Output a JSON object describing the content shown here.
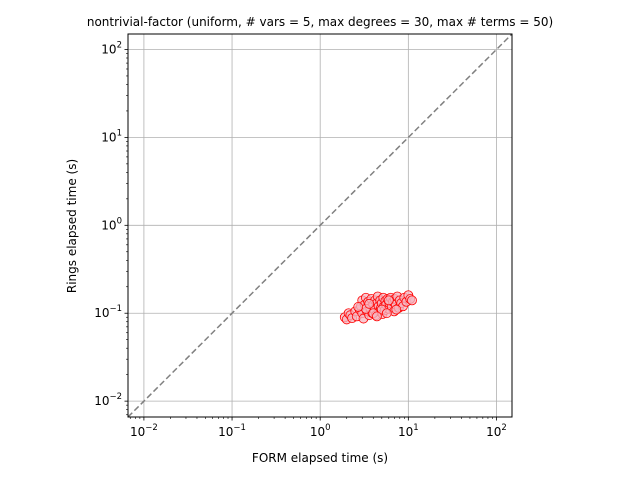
{
  "chart_data": {
    "type": "scatter",
    "title": "nontrivial-factor (uniform, # vars = 5, max degrees = 30, max # terms = 50)",
    "xlabel": "FORM elapsed time (s)",
    "ylabel": "Rings elapsed time (s)",
    "xscale": "log",
    "yscale": "log",
    "xlim": [
      0.0066,
      150
    ],
    "ylim": [
      0.0066,
      150
    ],
    "grid": true,
    "x_ticks": [
      {
        "base": "10",
        "exp": "−2",
        "value": 0.01
      },
      {
        "base": "10",
        "exp": "−1",
        "value": 0.1
      },
      {
        "base": "10",
        "exp": "0",
        "value": 1
      },
      {
        "base": "10",
        "exp": "1",
        "value": 10
      },
      {
        "base": "10",
        "exp": "2",
        "value": 100
      }
    ],
    "y_ticks": [
      {
        "base": "10",
        "exp": "−2",
        "value": 0.01
      },
      {
        "base": "10",
        "exp": "−1",
        "value": 0.1
      },
      {
        "base": "10",
        "exp": "0",
        "value": 1
      },
      {
        "base": "10",
        "exp": "1",
        "value": 10
      },
      {
        "base": "10",
        "exp": "2",
        "value": 100
      }
    ],
    "reference_line": {
      "style": "dashed",
      "color": "#808080",
      "relation": "y = x"
    },
    "marker": {
      "shape": "circle",
      "edge_color": "#ff0000",
      "fill_color": "#f4b6c0"
    },
    "points": [
      [
        1.9,
        0.09
      ],
      [
        2.0,
        0.085
      ],
      [
        2.1,
        0.1
      ],
      [
        2.2,
        0.095
      ],
      [
        2.3,
        0.088
      ],
      [
        2.5,
        0.105
      ],
      [
        2.6,
        0.092
      ],
      [
        2.8,
        0.11
      ],
      [
        2.9,
        0.12
      ],
      [
        3.0,
        0.1
      ],
      [
        3.0,
        0.14
      ],
      [
        3.1,
        0.087
      ],
      [
        3.2,
        0.125
      ],
      [
        3.3,
        0.15
      ],
      [
        3.4,
        0.105
      ],
      [
        3.5,
        0.135
      ],
      [
        3.6,
        0.095
      ],
      [
        3.7,
        0.115
      ],
      [
        3.8,
        0.145
      ],
      [
        3.9,
        0.1
      ],
      [
        4.0,
        0.125
      ],
      [
        4.1,
        0.11
      ],
      [
        4.2,
        0.14
      ],
      [
        4.3,
        0.095
      ],
      [
        4.4,
        0.13
      ],
      [
        4.5,
        0.155
      ],
      [
        4.6,
        0.12
      ],
      [
        4.7,
        0.105
      ],
      [
        4.8,
        0.14
      ],
      [
        4.9,
        0.115
      ],
      [
        5.0,
        0.13
      ],
      [
        5.1,
        0.098
      ],
      [
        5.2,
        0.15
      ],
      [
        5.3,
        0.12
      ],
      [
        5.4,
        0.108
      ],
      [
        5.5,
        0.138
      ],
      [
        5.6,
        0.125
      ],
      [
        5.8,
        0.145
      ],
      [
        6.0,
        0.112
      ],
      [
        6.1,
        0.13
      ],
      [
        6.3,
        0.15
      ],
      [
        6.5,
        0.118
      ],
      [
        6.7,
        0.135
      ],
      [
        6.9,
        0.105
      ],
      [
        7.0,
        0.145
      ],
      [
        7.2,
        0.125
      ],
      [
        7.5,
        0.155
      ],
      [
        7.8,
        0.115
      ],
      [
        8.0,
        0.14
      ],
      [
        8.3,
        0.13
      ],
      [
        8.7,
        0.12
      ],
      [
        9.0,
        0.15
      ],
      [
        9.5,
        0.135
      ],
      [
        10.0,
        0.16
      ],
      [
        10.5,
        0.145
      ],
      [
        11.0,
        0.14
      ],
      [
        3.3,
        0.112
      ],
      [
        4.0,
        0.1
      ],
      [
        5.0,
        0.11
      ],
      [
        6.0,
        0.14
      ],
      [
        3.6,
        0.128
      ],
      [
        2.7,
        0.118
      ],
      [
        4.4,
        0.092
      ],
      [
        5.7,
        0.1
      ],
      [
        7.3,
        0.11
      ]
    ]
  }
}
